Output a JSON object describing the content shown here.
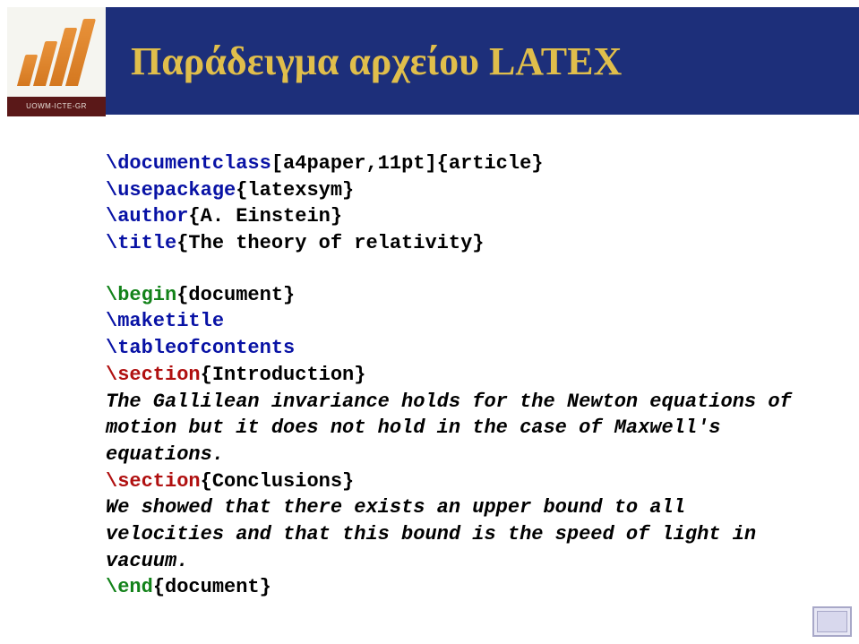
{
  "header": {
    "title": "Παράδειγμα αρχείου LATEX",
    "logo_label": "UOWM-ICTE-GR"
  },
  "code": {
    "line1_cmd": "\\documentclass",
    "line1_rest": "[a4paper,11pt]{article}",
    "line2_cmd": "\\usepackage",
    "line2_rest": "{latexsym}",
    "line3_cmd": "\\author",
    "line3_rest": "{A. Einstein}",
    "line4_cmd": "\\title",
    "line4_rest": "{The theory of relativity}",
    "begin_cmd": "\\begin",
    "begin_arg": "{document}",
    "maketitle": "\\maketitle",
    "toc": "\\tableofcontents",
    "sec1_cmd": "\\section",
    "sec1_arg": "{Introduction}",
    "body1": " The Gallilean invariance holds for the Newton equations of motion but it does not hold in the case of Maxwell's equations.",
    "sec2_cmd": "\\section",
    "sec2_arg": "{Conclusions}",
    "body2": "We showed that there exists an upper bound to all velocities and that this bound is the speed of light in vacuum.",
    "end_cmd": "\\end",
    "end_arg": "{document}"
  },
  "colors": {
    "header_bg": "#1d2f7a",
    "title_color": "#e0be4b",
    "cmd_blue": "#0812a5",
    "cmd_green": "#128219",
    "cmd_red": "#b01010",
    "logo_band": "#5a1818",
    "logo_bar": "#d47820"
  }
}
